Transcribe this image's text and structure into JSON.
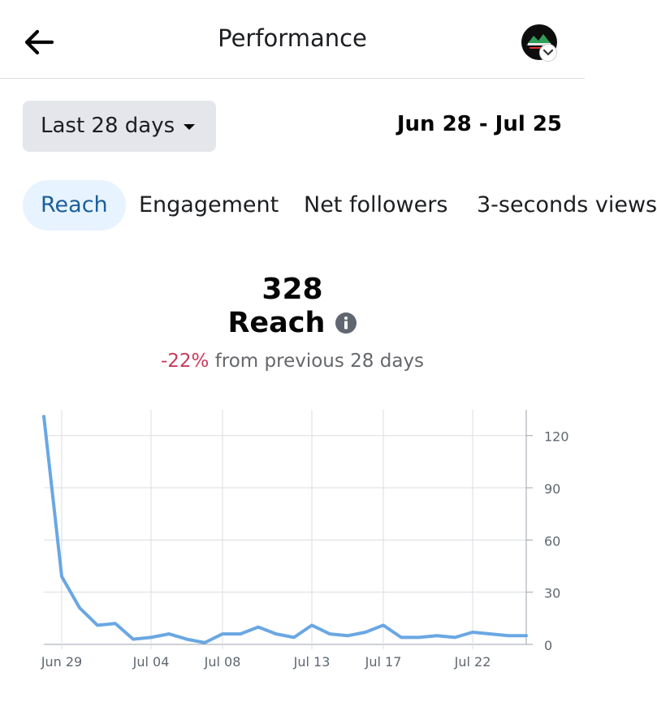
{
  "header": {
    "title": "Performance"
  },
  "filters": {
    "range_label": "Last 28 days",
    "date_range": "Jun 28 - Jul 25"
  },
  "tabs": [
    {
      "label": "Reach",
      "active": true
    },
    {
      "label": "Engagement",
      "active": false
    },
    {
      "label": "Net followers",
      "active": false
    },
    {
      "label": "3-seconds views",
      "active": false
    }
  ],
  "metric": {
    "value": "328",
    "name": "Reach",
    "change_pct": "-22%",
    "change_text": "from previous 28 days"
  },
  "chart_data": {
    "type": "line",
    "x": [
      "Jun 28",
      "Jun 29",
      "Jun 30",
      "Jul 01",
      "Jul 02",
      "Jul 03",
      "Jul 04",
      "Jul 05",
      "Jul 06",
      "Jul 07",
      "Jul 08",
      "Jul 09",
      "Jul 10",
      "Jul 11",
      "Jul 12",
      "Jul 13",
      "Jul 14",
      "Jul 15",
      "Jul 16",
      "Jul 17",
      "Jul 18",
      "Jul 19",
      "Jul 20",
      "Jul 21",
      "Jul 22",
      "Jul 23",
      "Jul 24",
      "Jul 25"
    ],
    "values": [
      131,
      39,
      21,
      11,
      12,
      3,
      4,
      6,
      3,
      1,
      6,
      6,
      10,
      6,
      4,
      11,
      6,
      5,
      7,
      11,
      4,
      4,
      5,
      4,
      7,
      6,
      5,
      5
    ],
    "x_tick_labels": [
      "Jun 29",
      "Jul 04",
      "Jul 08",
      "Jul 13",
      "Jul 17",
      "Jul 22"
    ],
    "y_ticks": [
      0,
      30,
      60,
      90,
      120
    ],
    "ylim": [
      0,
      132
    ],
    "grid": true,
    "y_axis_position": "right",
    "line_color": "#6aa7e3"
  },
  "colors": {
    "accent_tab_bg": "#e7f3ff",
    "accent_tab_text": "#1b5e9b",
    "negative": "#c83a5c"
  }
}
